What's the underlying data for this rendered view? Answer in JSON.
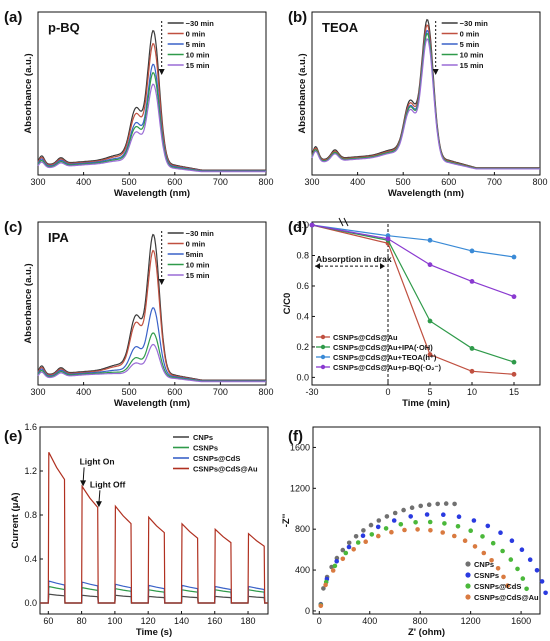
{
  "chart_data": [
    {
      "type": "line",
      "panel_label": "(a)",
      "title": "p-BQ",
      "xlabel": "Wavelength (nm)",
      "ylabel": "Absorbance (a.u.)",
      "xlim": [
        300,
        800
      ],
      "ylim": [
        0,
        1
      ],
      "xticks": [
        300,
        400,
        500,
        600,
        700,
        800
      ],
      "peak_x": 553,
      "series": [
        {
          "name": "−30 min",
          "color": "#3a3a3a",
          "peak": 0.88,
          "base": 0.06
        },
        {
          "name": "0 min",
          "color": "#c05040",
          "peak": 0.8,
          "base": 0.055
        },
        {
          "name": "5 min",
          "color": "#3a62c8",
          "peak": 0.67,
          "base": 0.05
        },
        {
          "name": "10 min",
          "color": "#2f9a4a",
          "peak": 0.62,
          "base": 0.045
        },
        {
          "name": "15 min",
          "color": "#9a6cd6",
          "peak": 0.55,
          "base": 0.04
        }
      ]
    },
    {
      "type": "line",
      "panel_label": "(b)",
      "title": "TEOA",
      "xlabel": "Wavelength (nm)",
      "ylabel": "Absorbance (a.u.)",
      "xlim": [
        300,
        800
      ],
      "ylim": [
        0,
        1
      ],
      "xticks": [
        300,
        400,
        500,
        600,
        700,
        800
      ],
      "peak_x": 553,
      "series": [
        {
          "name": "−30 min",
          "color": "#3a3a3a",
          "peak": 0.92,
          "base": 0.09
        },
        {
          "name": "0 min",
          "color": "#c05040",
          "peak": 0.89,
          "base": 0.085
        },
        {
          "name": "5 min",
          "color": "#3a62c8",
          "peak": 0.86,
          "base": 0.08
        },
        {
          "name": "10 min",
          "color": "#2f9a4a",
          "peak": 0.84,
          "base": 0.08
        },
        {
          "name": "15 min",
          "color": "#9a6cd6",
          "peak": 0.81,
          "base": 0.075
        }
      ]
    },
    {
      "type": "line",
      "panel_label": "(c)",
      "title": "IPA",
      "xlabel": "Wavelength (nm)",
      "ylabel": "Absorbance (a.u.)",
      "xlim": [
        300,
        800
      ],
      "ylim": [
        0,
        1
      ],
      "xticks": [
        300,
        400,
        500,
        600,
        700,
        800
      ],
      "peak_x": 553,
      "series": [
        {
          "name": "−30 min",
          "color": "#3a3a3a",
          "peak": 0.92,
          "base": 0.06
        },
        {
          "name": "0 min",
          "color": "#c05040",
          "peak": 0.82,
          "base": 0.055
        },
        {
          "name": "5min",
          "color": "#3a62c8",
          "peak": 0.45,
          "base": 0.05
        },
        {
          "name": "10 min",
          "color": "#2f9a4a",
          "peak": 0.29,
          "base": 0.045
        },
        {
          "name": "15 min",
          "color": "#9a6cd6",
          "peak": 0.22,
          "base": 0.04
        }
      ]
    },
    {
      "type": "line",
      "panel_label": "(d)",
      "xlabel": "Time (min)",
      "ylabel": "C/C0",
      "ylim": [
        -0.05,
        1.02
      ],
      "yticks": [
        0.0,
        0.2,
        0.4,
        0.6,
        0.8,
        1.0
      ],
      "x": [
        -30,
        0,
        5,
        10,
        15
      ],
      "xtick_labels": [
        "-30",
        "0",
        "5",
        "10",
        "15"
      ],
      "annotation": "Absorption in drak",
      "series": [
        {
          "name": "CSNPs@CdS@Au",
          "color": "#c05040",
          "values": [
            1.0,
            0.88,
            0.15,
            0.04,
            0.02
          ]
        },
        {
          "name": "CSNPs@CdS@Au+IPA(·OH)",
          "color": "#2f9a4a",
          "values": [
            1.0,
            0.9,
            0.37,
            0.19,
            0.1
          ]
        },
        {
          "name": "CSNPs@CdS@Au+TEOA(h⁺)",
          "color": "#3a8ad6",
          "values": [
            1.0,
            0.93,
            0.9,
            0.83,
            0.79
          ]
        },
        {
          "name": "CSNPs@CdS@Au+p-BQ(·O₂⁻)",
          "color": "#8a3ad0",
          "values": [
            1.0,
            0.91,
            0.74,
            0.63,
            0.53
          ]
        }
      ]
    },
    {
      "type": "line",
      "panel_label": "(e)",
      "xlabel": "Time (s)",
      "ylabel": "Current (μA)",
      "xlim": [
        55,
        192
      ],
      "ylim": [
        -0.1,
        1.6
      ],
      "xticks": [
        60,
        80,
        100,
        120,
        140,
        160,
        180
      ],
      "yticks": [
        0.0,
        0.4,
        0.8,
        1.2,
        1.6
      ],
      "on_times": [
        60,
        80,
        100,
        120,
        140,
        160,
        180
      ],
      "annotations": [
        "Light On",
        "Light Off"
      ],
      "series": [
        {
          "name": "CNPs",
          "color": "#4a4a4a",
          "amplitudes": [
            0.08,
            0.07,
            0.07,
            0.06,
            0.06,
            0.06,
            0.06
          ]
        },
        {
          "name": "CSNPs",
          "color": "#2f9a4a",
          "amplitudes": [
            0.15,
            0.14,
            0.13,
            0.12,
            0.12,
            0.12,
            0.12
          ]
        },
        {
          "name": "CSNPs@CdS",
          "color": "#3a62c8",
          "amplitudes": [
            0.2,
            0.19,
            0.17,
            0.16,
            0.16,
            0.15,
            0.15
          ]
        },
        {
          "name": "CSNPs@CdS@Au",
          "color": "#b03020",
          "amplitudes": [
            1.37,
            1.06,
            0.88,
            0.78,
            0.72,
            0.67,
            0.63
          ]
        }
      ]
    },
    {
      "type": "scatter",
      "panel_label": "(f)",
      "xlabel": "Z' (ohm)",
      "ylabel": "-Z''",
      "xlim": [
        -50,
        1750
      ],
      "ylim": [
        -30,
        1800
      ],
      "xticks": [
        0,
        400,
        800,
        1200,
        1600
      ],
      "yticks": [
        0,
        400,
        800,
        1200,
        1600
      ],
      "series": [
        {
          "name": "CNPs",
          "color": "#707070",
          "radius": 1000,
          "n": 20,
          "end_frac": 0.52
        },
        {
          "name": "CSNPs",
          "color": "#2a3ae0",
          "radius": 900,
          "n": 20,
          "end_frac": 0.94
        },
        {
          "name": "CSNPs@CdS",
          "color": "#4ab83a",
          "radius": 830,
          "n": 20,
          "end_frac": 0.92
        },
        {
          "name": "CSNPs@CdS@Au",
          "color": "#d97a40",
          "radius": 760,
          "n": 20,
          "end_frac": 0.9
        }
      ]
    }
  ]
}
